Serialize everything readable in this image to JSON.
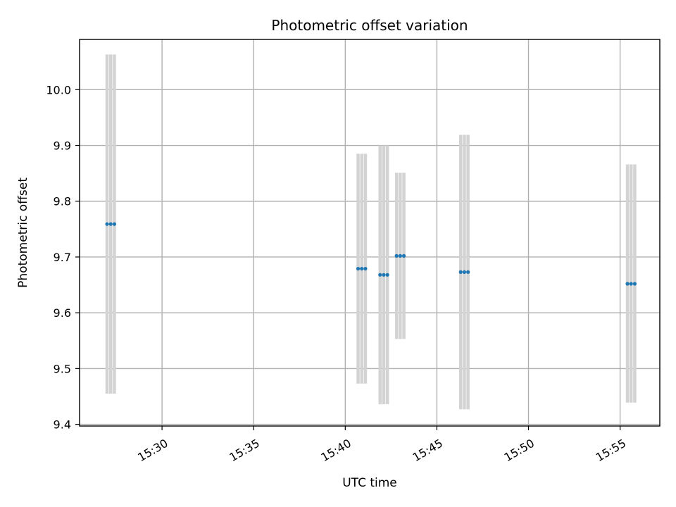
{
  "chart_data": {
    "type": "scatter",
    "title": "Photometric offset variation",
    "xlabel": "UTC time",
    "ylabel": "Photometric offset",
    "x_ticks": [
      "15:30",
      "15:35",
      "15:40",
      "15:45",
      "15:50",
      "15:55"
    ],
    "xlim": [
      "15:25:30",
      "15:57:10"
    ],
    "ylim": [
      9.397,
      10.09
    ],
    "y_ticks": [
      9.4,
      9.5,
      9.6,
      9.7,
      9.8,
      9.9,
      10.0
    ],
    "y_tick_labels": [
      "9.4",
      "9.5",
      "9.6",
      "9.7",
      "9.8",
      "9.9",
      "10.0"
    ],
    "grid": true,
    "errorbar_color": "#d3d3d3",
    "marker_color": "#1f77b4",
    "series": [
      {
        "points": [
          {
            "time": "15:27:00",
            "y": 9.759,
            "lower": 9.455,
            "upper": 10.063
          },
          {
            "time": "15:27:12",
            "y": 9.759,
            "lower": 9.455,
            "upper": 10.063
          },
          {
            "time": "15:27:24",
            "y": 9.759,
            "lower": 9.455,
            "upper": 10.063
          },
          {
            "time": "15:40:42",
            "y": 9.679,
            "lower": 9.473,
            "upper": 9.885
          },
          {
            "time": "15:40:54",
            "y": 9.679,
            "lower": 9.473,
            "upper": 9.885
          },
          {
            "time": "15:41:06",
            "y": 9.679,
            "lower": 9.473,
            "upper": 9.885
          },
          {
            "time": "15:41:54",
            "y": 9.668,
            "lower": 9.436,
            "upper": 9.9
          },
          {
            "time": "15:42:06",
            "y": 9.668,
            "lower": 9.436,
            "upper": 9.9
          },
          {
            "time": "15:42:18",
            "y": 9.668,
            "lower": 9.436,
            "upper": 9.9
          },
          {
            "time": "15:42:48",
            "y": 9.702,
            "lower": 9.553,
            "upper": 9.851
          },
          {
            "time": "15:43:00",
            "y": 9.702,
            "lower": 9.553,
            "upper": 9.851
          },
          {
            "time": "15:43:12",
            "y": 9.702,
            "lower": 9.553,
            "upper": 9.851
          },
          {
            "time": "15:46:18",
            "y": 9.673,
            "lower": 9.427,
            "upper": 9.919
          },
          {
            "time": "15:46:30",
            "y": 9.673,
            "lower": 9.427,
            "upper": 9.919
          },
          {
            "time": "15:46:42",
            "y": 9.673,
            "lower": 9.427,
            "upper": 9.919
          },
          {
            "time": "15:55:24",
            "y": 9.652,
            "lower": 9.439,
            "upper": 9.866
          },
          {
            "time": "15:55:36",
            "y": 9.652,
            "lower": 9.439,
            "upper": 9.866
          },
          {
            "time": "15:55:48",
            "y": 9.652,
            "lower": 9.439,
            "upper": 9.866
          }
        ]
      }
    ]
  }
}
